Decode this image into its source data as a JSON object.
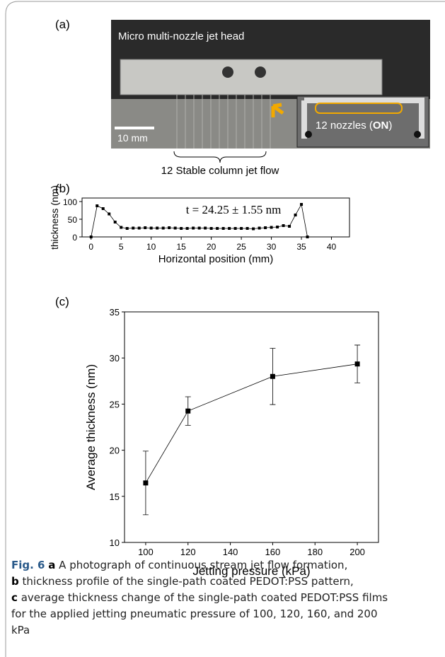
{
  "panels": {
    "a": "(a)",
    "b": "(b)",
    "c": "(c)"
  },
  "photo": {
    "head_label": "Micro multi-nozzle jet head",
    "scale_label": "10 mm",
    "inset_label": "12 nozzles (",
    "inset_bold": "ON",
    "inset_end": ")",
    "flow_label": "12 Stable column jet flow"
  },
  "chart_data": [
    {
      "type": "line",
      "xlabel": "Horizontal position (mm)",
      "ylabel": "thickness (nm)",
      "annotation": "t = 24.25 ± 1.55 nm",
      "x": [
        0,
        1,
        2,
        3,
        4,
        5,
        6,
        7,
        8,
        9,
        10,
        11,
        12,
        13,
        14,
        15,
        16,
        17,
        18,
        19,
        20,
        21,
        22,
        23,
        24,
        25,
        26,
        27,
        28,
        29,
        30,
        31,
        32,
        33,
        34,
        35,
        36
      ],
      "series": [
        {
          "color": "#000000",
          "values": [
            0,
            88,
            80,
            65,
            42,
            27,
            24,
            25,
            25,
            26,
            25,
            25,
            25,
            26,
            25,
            24,
            24,
            25,
            25,
            25,
            24,
            24,
            24,
            24,
            24,
            24,
            24,
            23,
            25,
            26,
            27,
            28,
            32,
            30,
            62,
            92,
            0
          ]
        }
      ],
      "xlim": [
        -1.5,
        43
      ],
      "ylim": [
        0,
        110
      ],
      "xticks": [
        0,
        5,
        10,
        15,
        20,
        25,
        30,
        35,
        40
      ],
      "yticks": [
        0,
        50,
        100
      ]
    },
    {
      "type": "line",
      "xlabel": "Jetting pressure (kPa)",
      "ylabel": "Average thickness (nm)",
      "x": [
        100,
        120,
        160,
        200
      ],
      "series": [
        {
          "color": "#000000",
          "values": [
            16.45,
            24.25,
            28.0,
            29.35
          ],
          "errors": [
            3.45,
            1.55,
            3.05,
            2.05
          ]
        }
      ],
      "xlim": [
        90,
        210
      ],
      "ylim": [
        10,
        35
      ],
      "xticks": [
        100,
        120,
        140,
        160,
        180,
        200
      ],
      "yticks": [
        10,
        15,
        20,
        25,
        30,
        35
      ]
    }
  ],
  "caption": {
    "label": "Fig. 6",
    "parts": [
      {
        "bold": "a",
        "text": "A photograph of continuous stream jet flow formation,"
      },
      {
        "bold": "b",
        "text": "thickness profile of the single-path coated PEDOT:PSS pattern,"
      },
      {
        "bold": "c",
        "text": "average thickness change of the single-path coated PEDOT:PSS films for the applied jetting pneumatic pressure of 100, 120, 160, and 200 kPa"
      }
    ]
  }
}
